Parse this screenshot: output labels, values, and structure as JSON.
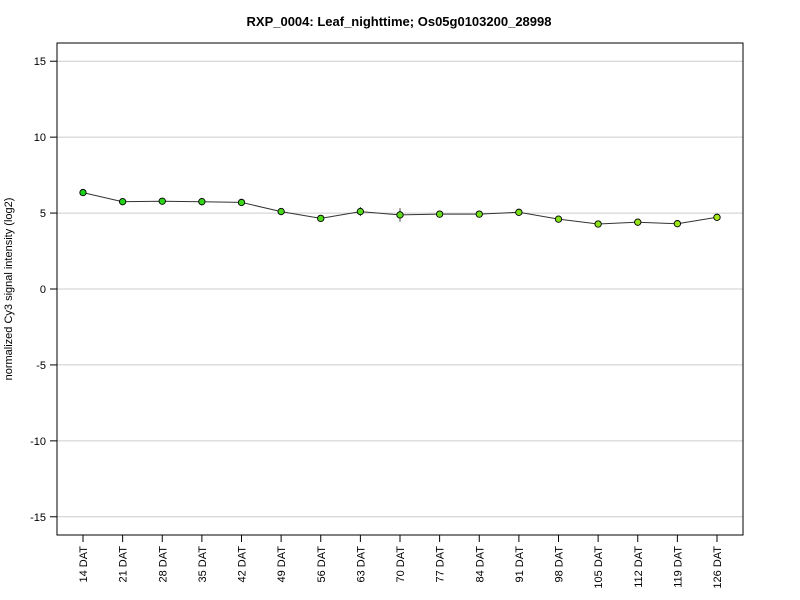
{
  "chart_data": {
    "type": "line",
    "title": "RXP_0004: Leaf_nighttime; Os05g0103200_28998",
    "xlabel": "",
    "ylabel": "normalized Cy3 signal intensity (log2)",
    "categories": [
      "14 DAT",
      "21 DAT",
      "28 DAT",
      "35 DAT",
      "42 DAT",
      "49 DAT",
      "56 DAT",
      "63 DAT",
      "70 DAT",
      "77 DAT",
      "84 DAT",
      "91 DAT",
      "98 DAT",
      "105 DAT",
      "112 DAT",
      "119 DAT",
      "126 DAT"
    ],
    "series": [
      {
        "values": [
          6.35,
          5.75,
          5.78,
          5.75,
          5.7,
          5.1,
          4.65,
          5.1,
          4.88,
          4.93,
          4.93,
          5.05,
          4.6,
          4.28,
          4.4,
          4.3,
          4.72
        ],
        "errors": [
          0.2,
          0.15,
          0.15,
          0.25,
          0.15,
          0.1,
          0.1,
          0.3,
          0.45,
          0.2,
          0.1,
          0.2,
          0.15,
          0.2,
          0.15,
          0.1,
          0.15
        ]
      }
    ],
    "yticks": [
      -15,
      -10,
      -5,
      0,
      5,
      10,
      15
    ],
    "ylim": [
      -16.2,
      16.2
    ],
    "grid": true,
    "point_colors": [
      "#19d219",
      "#22d419",
      "#2bd519",
      "#33d619",
      "#3cd819",
      "#45d919",
      "#4edb19",
      "#56dc19",
      "#5fdd19",
      "#68df19",
      "#71e019",
      "#7ae119",
      "#83e319",
      "#8be419",
      "#94e519",
      "#9de719",
      "#a6e819"
    ]
  }
}
